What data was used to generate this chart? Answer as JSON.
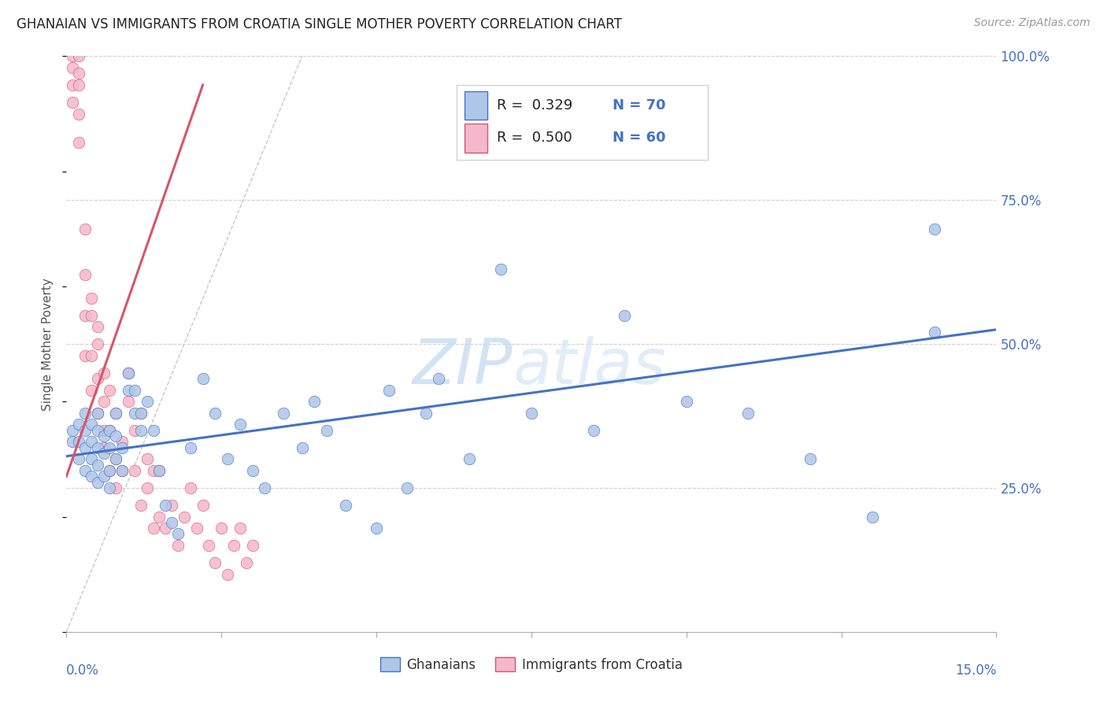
{
  "title": "GHANAIAN VS IMMIGRANTS FROM CROATIA SINGLE MOTHER POVERTY CORRELATION CHART",
  "source": "Source: ZipAtlas.com",
  "ylabel": "Single Mother Poverty",
  "xmin": 0.0,
  "xmax": 0.15,
  "ymin": 0.0,
  "ymax": 1.05,
  "ghanaian_R": 0.329,
  "ghanaian_N": 70,
  "croatia_R": 0.5,
  "croatia_N": 60,
  "ghanaian_color": "#aec6e8",
  "croatia_color": "#f4b8cc",
  "ghanaian_line_color": "#4472c4",
  "croatia_line_color": "#d9546a",
  "ref_line_color": "#c8c8c8",
  "legend_label_1": "Ghanaians",
  "legend_label_2": "Immigrants from Croatia",
  "background_color": "#ffffff",
  "title_fontsize": 12,
  "source_fontsize": 10,
  "axis_label_color": "#4472c4",
  "watermark": "ZIPatlas",
  "ghanaian_scatter_x": [
    0.001,
    0.001,
    0.002,
    0.002,
    0.002,
    0.003,
    0.003,
    0.003,
    0.003,
    0.004,
    0.004,
    0.004,
    0.004,
    0.005,
    0.005,
    0.005,
    0.005,
    0.005,
    0.006,
    0.006,
    0.006,
    0.007,
    0.007,
    0.007,
    0.007,
    0.008,
    0.008,
    0.008,
    0.009,
    0.009,
    0.01,
    0.01,
    0.011,
    0.011,
    0.012,
    0.012,
    0.013,
    0.014,
    0.015,
    0.016,
    0.017,
    0.018,
    0.02,
    0.022,
    0.024,
    0.026,
    0.028,
    0.03,
    0.032,
    0.035,
    0.038,
    0.04,
    0.042,
    0.045,
    0.05,
    0.052,
    0.055,
    0.058,
    0.06,
    0.065,
    0.07,
    0.075,
    0.085,
    0.09,
    0.1,
    0.11,
    0.12,
    0.13,
    0.14,
    0.14
  ],
  "ghanaian_scatter_y": [
    0.33,
    0.35,
    0.3,
    0.33,
    0.36,
    0.28,
    0.32,
    0.35,
    0.38,
    0.27,
    0.3,
    0.33,
    0.36,
    0.26,
    0.29,
    0.32,
    0.35,
    0.38,
    0.27,
    0.31,
    0.34,
    0.25,
    0.28,
    0.32,
    0.35,
    0.3,
    0.34,
    0.38,
    0.28,
    0.32,
    0.42,
    0.45,
    0.38,
    0.42,
    0.35,
    0.38,
    0.4,
    0.35,
    0.28,
    0.22,
    0.19,
    0.17,
    0.32,
    0.44,
    0.38,
    0.3,
    0.36,
    0.28,
    0.25,
    0.38,
    0.32,
    0.4,
    0.35,
    0.22,
    0.18,
    0.42,
    0.25,
    0.38,
    0.44,
    0.3,
    0.63,
    0.38,
    0.35,
    0.55,
    0.4,
    0.38,
    0.3,
    0.2,
    0.52,
    0.7
  ],
  "croatia_scatter_x": [
    0.001,
    0.001,
    0.001,
    0.001,
    0.002,
    0.002,
    0.002,
    0.002,
    0.002,
    0.003,
    0.003,
    0.003,
    0.003,
    0.004,
    0.004,
    0.004,
    0.004,
    0.005,
    0.005,
    0.005,
    0.005,
    0.006,
    0.006,
    0.006,
    0.006,
    0.007,
    0.007,
    0.007,
    0.008,
    0.008,
    0.008,
    0.009,
    0.009,
    0.01,
    0.01,
    0.011,
    0.011,
    0.012,
    0.012,
    0.013,
    0.013,
    0.014,
    0.014,
    0.015,
    0.015,
    0.016,
    0.017,
    0.018,
    0.019,
    0.02,
    0.021,
    0.022,
    0.023,
    0.024,
    0.025,
    0.026,
    0.027,
    0.028,
    0.029,
    0.03
  ],
  "croatia_scatter_y": [
    0.95,
    1.0,
    0.98,
    0.92,
    1.0,
    0.97,
    0.95,
    0.9,
    0.85,
    0.7,
    0.62,
    0.55,
    0.48,
    0.55,
    0.48,
    0.42,
    0.58,
    0.44,
    0.5,
    0.38,
    0.53,
    0.35,
    0.4,
    0.45,
    0.32,
    0.28,
    0.35,
    0.42,
    0.3,
    0.38,
    0.25,
    0.33,
    0.28,
    0.4,
    0.45,
    0.35,
    0.28,
    0.22,
    0.38,
    0.25,
    0.3,
    0.28,
    0.18,
    0.2,
    0.28,
    0.18,
    0.22,
    0.15,
    0.2,
    0.25,
    0.18,
    0.22,
    0.15,
    0.12,
    0.18,
    0.1,
    0.15,
    0.18,
    0.12,
    0.15
  ],
  "blue_line_x": [
    0.0,
    0.15
  ],
  "blue_line_y": [
    0.305,
    0.525
  ],
  "pink_line_x": [
    0.0,
    0.022
  ],
  "pink_line_y": [
    0.27,
    0.95
  ]
}
